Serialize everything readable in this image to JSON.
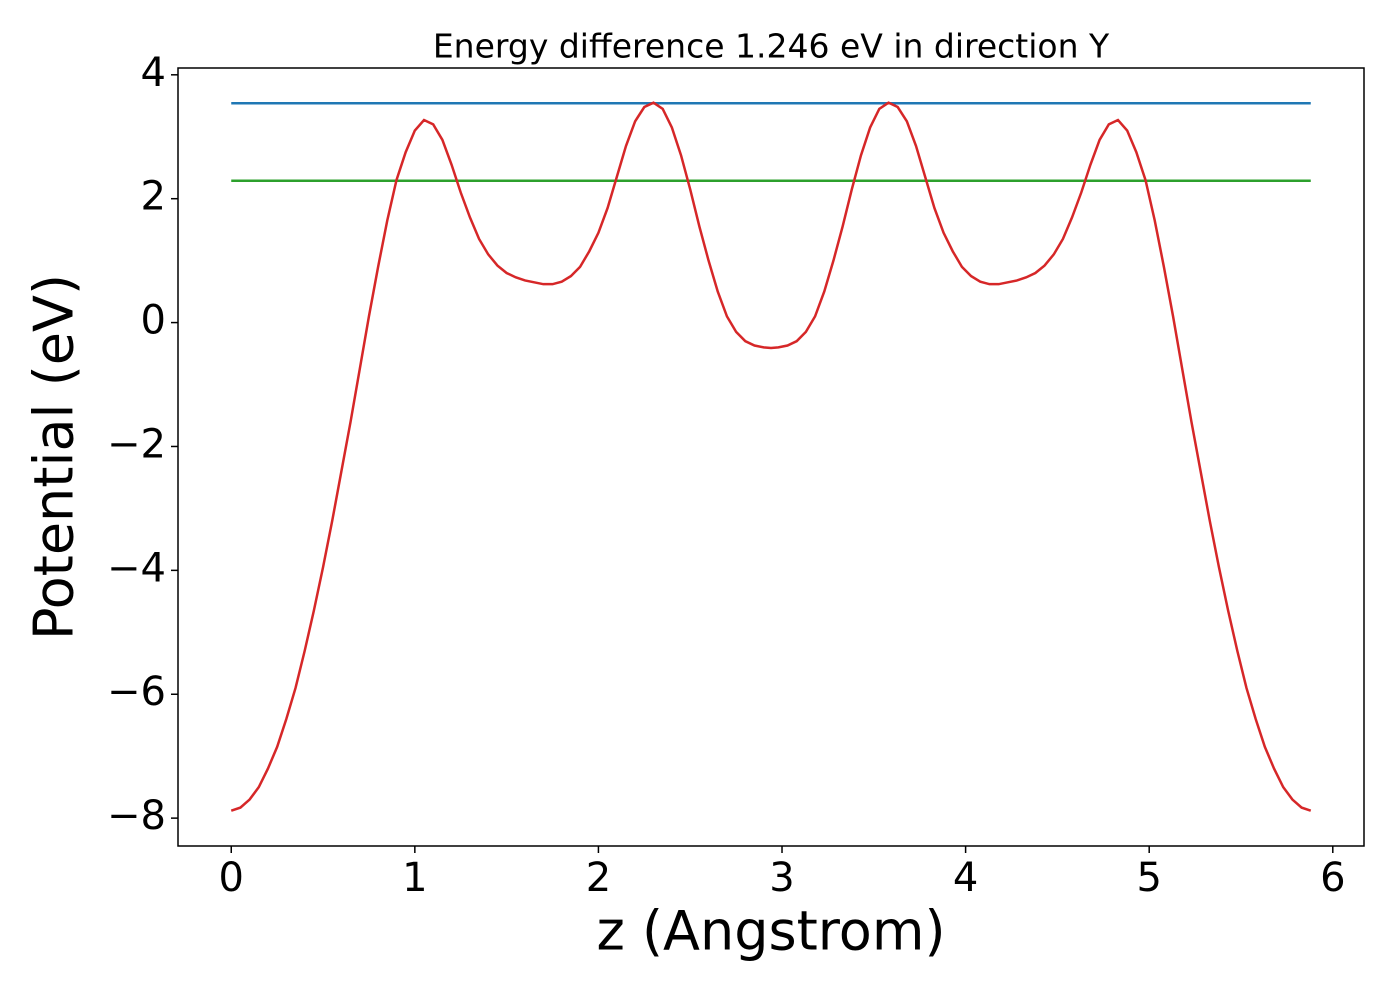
{
  "chart_data": {
    "type": "line",
    "title": "Energy difference 1.246 eV in direction Y",
    "x_label": "z (Angstrom)",
    "y_label": "Potential (eV)",
    "xlim": [
      -0.29,
      6.17
    ],
    "ylim": [
      -8.45,
      4.11
    ],
    "xticks": [
      0,
      1,
      2,
      3,
      4,
      5,
      6
    ],
    "yticks": [
      {
        "value": -8,
        "label": "−8"
      },
      {
        "value": -6,
        "label": "−6"
      },
      {
        "value": -4,
        "label": "−4"
      },
      {
        "value": -2,
        "label": "−2"
      },
      0,
      2,
      4
    ],
    "series": [
      {
        "color": "#1f77b4",
        "x": [
          0,
          5.88
        ],
        "values": [
          3.54,
          3.54
        ]
      },
      {
        "color": "#2ca02c",
        "x": [
          0,
          5.88
        ],
        "values": [
          2.29,
          2.29
        ]
      },
      {
        "color": "#d62728",
        "x": [
          0,
          0.05,
          0.1,
          0.15,
          0.2,
          0.25,
          0.3,
          0.35,
          0.4,
          0.45,
          0.5,
          0.55,
          0.6,
          0.65,
          0.7,
          0.75,
          0.8,
          0.85,
          0.9,
          0.95,
          1.0,
          1.05,
          1.1,
          1.15,
          1.2,
          1.25,
          1.3,
          1.35,
          1.4,
          1.45,
          1.5,
          1.55,
          1.6,
          1.65,
          1.7,
          1.75,
          1.8,
          1.85,
          1.9,
          1.95,
          2.0,
          2.05,
          2.1,
          2.15,
          2.2,
          2.25,
          2.3,
          2.35,
          2.4,
          2.45,
          2.5,
          2.55,
          2.6,
          2.65,
          2.7,
          2.75,
          2.8,
          2.85,
          2.9,
          2.94,
          2.98,
          3.03,
          3.08,
          3.13,
          3.18,
          3.23,
          3.28,
          3.33,
          3.38,
          3.43,
          3.48,
          3.53,
          3.58,
          3.63,
          3.68,
          3.73,
          3.78,
          3.83,
          3.88,
          3.93,
          3.98,
          4.03,
          4.08,
          4.13,
          4.18,
          4.23,
          4.28,
          4.33,
          4.38,
          4.43,
          4.48,
          4.53,
          4.58,
          4.63,
          4.68,
          4.73,
          4.78,
          4.83,
          4.88,
          4.93,
          4.98,
          5.03,
          5.08,
          5.13,
          5.18,
          5.23,
          5.28,
          5.33,
          5.38,
          5.43,
          5.48,
          5.53,
          5.58,
          5.63,
          5.68,
          5.73,
          5.78,
          5.83,
          5.88
        ],
        "values": [
          -7.88,
          -7.83,
          -7.7,
          -7.5,
          -7.2,
          -6.85,
          -6.4,
          -5.9,
          -5.3,
          -4.65,
          -3.95,
          -3.2,
          -2.4,
          -1.6,
          -0.75,
          0.1,
          0.9,
          1.65,
          2.3,
          2.75,
          3.1,
          3.27,
          3.2,
          2.95,
          2.55,
          2.1,
          1.7,
          1.35,
          1.1,
          0.92,
          0.8,
          0.73,
          0.68,
          0.65,
          0.62,
          0.62,
          0.66,
          0.75,
          0.9,
          1.15,
          1.45,
          1.85,
          2.35,
          2.85,
          3.25,
          3.48,
          3.55,
          3.45,
          3.15,
          2.7,
          2.15,
          1.55,
          1.0,
          0.5,
          0.1,
          -0.15,
          -0.3,
          -0.37,
          -0.4,
          -0.41,
          -0.4,
          -0.37,
          -0.3,
          -0.15,
          0.1,
          0.5,
          1.0,
          1.55,
          2.15,
          2.7,
          3.15,
          3.45,
          3.55,
          3.48,
          3.25,
          2.85,
          2.35,
          1.85,
          1.45,
          1.15,
          0.9,
          0.75,
          0.66,
          0.62,
          0.62,
          0.65,
          0.68,
          0.73,
          0.8,
          0.92,
          1.1,
          1.35,
          1.7,
          2.1,
          2.55,
          2.95,
          3.2,
          3.27,
          3.1,
          2.75,
          2.3,
          1.65,
          0.9,
          0.1,
          -0.75,
          -1.6,
          -2.4,
          -3.2,
          -3.95,
          -4.65,
          -5.3,
          -5.9,
          -6.4,
          -6.85,
          -7.2,
          -7.5,
          -7.7,
          -7.83,
          -7.88
        ]
      }
    ]
  }
}
